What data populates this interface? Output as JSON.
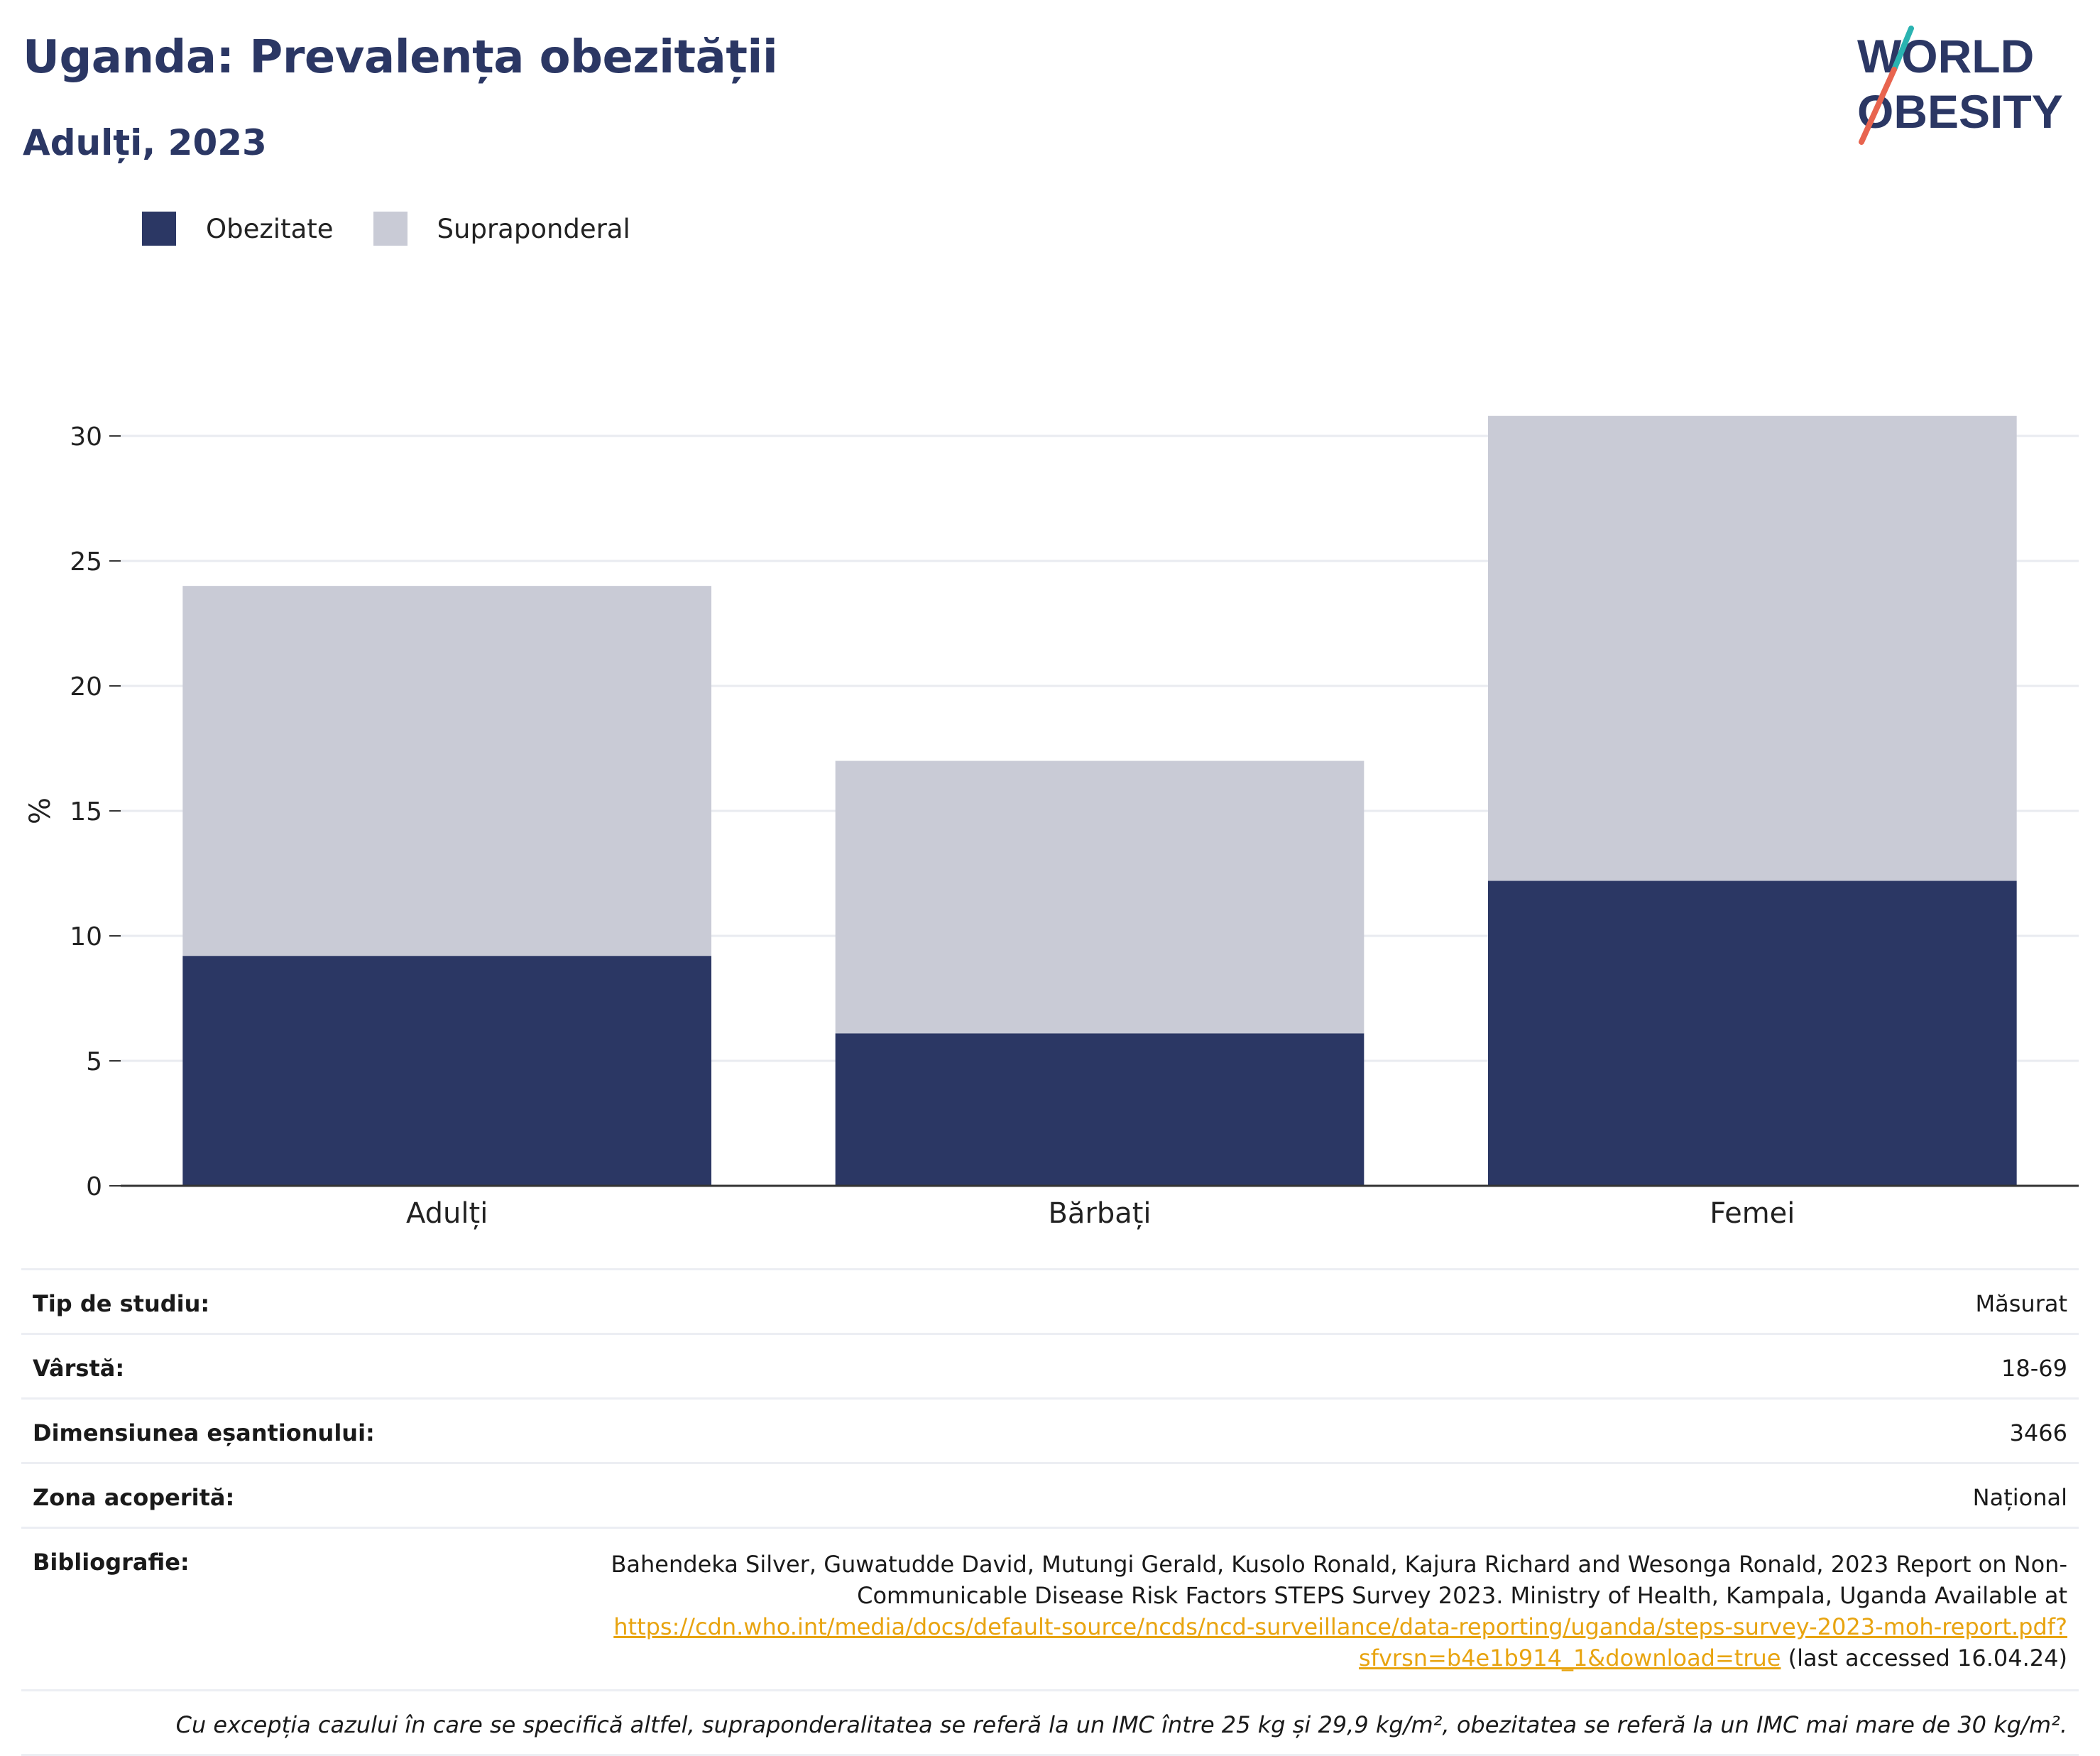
{
  "header": {
    "title": "Uganda: Prevalența obezității",
    "subtitle": "Adulți, 2023"
  },
  "logo": {
    "line1": "WORLD",
    "line2": "OBESITY",
    "colors": [
      "#2b3764",
      "#2ab3b1",
      "#e8644f"
    ]
  },
  "legend": [
    {
      "label": "Obezitate",
      "color": "#2b3764"
    },
    {
      "label": "Supraponderal",
      "color": "#c9cbd6"
    }
  ],
  "chart_data": {
    "type": "bar",
    "stacked": true,
    "title": "Uganda: Prevalența obezității",
    "subtitle": "Adulți, 2023",
    "ylabel": "%",
    "xlabel": "",
    "categories": [
      "Adulți",
      "Bărbați",
      "Femei"
    ],
    "series": [
      {
        "name": "Obezitate",
        "values": [
          9.2,
          6.1,
          12.2
        ],
        "color": "#2b3764"
      },
      {
        "name": "Supraponderal",
        "values": [
          14.8,
          10.9,
          18.6
        ],
        "color": "#c9cbd6"
      }
    ],
    "ylim": [
      0,
      30
    ],
    "yticks": [
      0,
      5,
      10,
      15,
      20,
      25,
      30
    ],
    "grid": true,
    "legend_position": "top-left"
  },
  "info": {
    "study_type_label": "Tip de studiu:",
    "study_type_value": "Măsurat",
    "age_label": "Vârstă:",
    "age_value": "18-69",
    "sample_label": "Dimensiunea eșantionului:",
    "sample_value": "3466",
    "area_label": "Zona acoperită:",
    "area_value": "Național",
    "ref_label": "Bibliografie:",
    "ref_text": "Bahendeka Silver, Guwatudde David, Mutungi Gerald, Kusolo Ronald, Kajura Richard and Wesonga Ronald, 2023 Report on Non-Communicable Disease Risk Factors STEPS Survey 2023. Ministry of Health, Kampala, Uganda Available at ",
    "ref_link": "https://cdn.who.int/media/docs/default-source/ncds/ncd-surveillance/data-reporting/uganda/steps-survey-2023-moh-report.pdf?sfvrsn=b4e1b914_1&download=true",
    "ref_suffix": " (last accessed 16.04.24)",
    "note": "Cu excepția cazului în care se specifică altfel, supraponderalitatea se referă la un IMC între 25 kg și 29,9 kg/m², obezitatea se referă la un IMC mai mare de 30 kg/m²."
  }
}
